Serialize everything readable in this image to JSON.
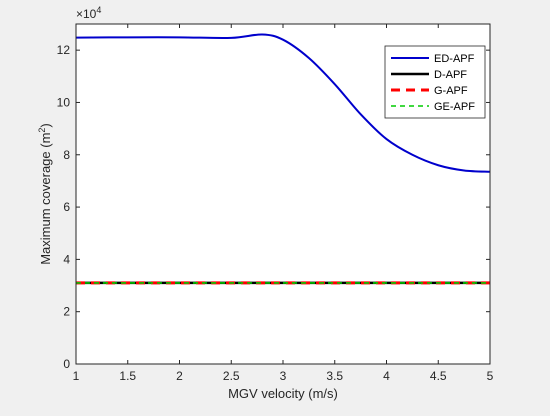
{
  "chart_data": {
    "type": "line",
    "xlabel": "MGV velocity (m/s)",
    "ylabel": "Maximum coverage (m",
    "ylabel_sup": "2",
    "ylabel_close": ")",
    "y_exponent_base": "×10",
    "y_exponent_power": "4",
    "xlim": [
      1,
      5
    ],
    "ylim": [
      0,
      130000
    ],
    "x_ticks": [
      "1",
      "1.5",
      "2",
      "2.5",
      "3",
      "3.5",
      "4",
      "4.5",
      "5"
    ],
    "y_ticks": [
      "0",
      "2",
      "4",
      "6",
      "8",
      "10",
      "12"
    ],
    "grid": false,
    "legend_position": "top-right",
    "x": [
      1.0,
      1.5,
      2.0,
      2.5,
      2.8,
      3.0,
      3.25,
      3.5,
      3.75,
      4.0,
      4.25,
      4.5,
      4.75,
      5.0
    ],
    "series": [
      {
        "name": "ED-APF",
        "color": "#0000cc",
        "style": "solid",
        "values": [
          124800,
          124900,
          124900,
          124700,
          126000,
          124000,
          117000,
          107000,
          95500,
          86000,
          80000,
          76000,
          74000,
          73500
        ]
      },
      {
        "name": "D-APF",
        "color": "#000000",
        "style": "solid",
        "values": [
          31000,
          31000,
          31000,
          31000,
          31000,
          31000,
          31000,
          31000,
          31000,
          31000,
          31000,
          31000,
          31000,
          31000
        ]
      },
      {
        "name": "G-APF",
        "color": "#ff0000",
        "style": "dashed",
        "values": [
          31000,
          31000,
          31000,
          31000,
          31000,
          31000,
          31000,
          31000,
          31000,
          31000,
          31000,
          31000,
          31000,
          31000
        ]
      },
      {
        "name": "GE-APF",
        "color": "#00cc00",
        "style": "dashed",
        "values": [
          31000,
          31000,
          31000,
          31000,
          31000,
          31000,
          31000,
          31000,
          31000,
          31000,
          31000,
          31000,
          31000,
          31000
        ]
      }
    ]
  }
}
